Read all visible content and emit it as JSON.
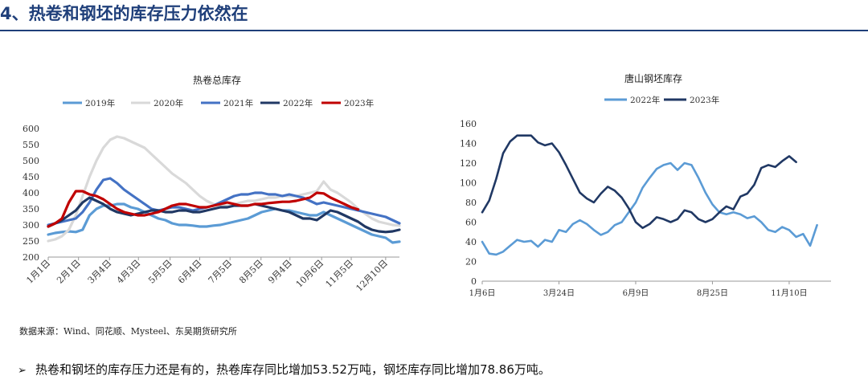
{
  "header": {
    "title": "4、热卷和钢坯的库存压力依然在"
  },
  "source_note": "数据来源：Wind、同花顺、Mysteel、东吴期货研究所",
  "bullet": {
    "arrow": "➢",
    "text": "热卷和钢坯的库存压力还是有的，热卷库存同比增加53.52万吨，钢坯库存同比增加78.86万吨。"
  },
  "chart_data": [
    {
      "type": "line",
      "title": "热卷总库存",
      "xlabel": "",
      "ylabel": "",
      "ylim": [
        200,
        600
      ],
      "yticks": [
        "600",
        "550",
        "500",
        "450",
        "400",
        "350",
        "300",
        "250",
        "200"
      ],
      "x_tick_labels": [
        "1月1日",
        "2月1日",
        "3月4日",
        "4月3日",
        "5月5日",
        "6月4日",
        "7月5日",
        "8月5日",
        "9月4日",
        "10月6日",
        "11月5日",
        "12月10日"
      ],
      "x_tick_weeks": [
        0,
        4.4,
        8.9,
        13.1,
        17.7,
        22,
        26.4,
        30.9,
        35.1,
        39.7,
        44,
        49
      ],
      "x_range_weeks": [
        0,
        51
      ],
      "grid": false,
      "legend": "top",
      "series": [
        {
          "name": "2019年",
          "color": "#5b9bd5",
          "values": [
            270,
            275,
            278,
            280,
            278,
            285,
            330,
            350,
            360,
            360,
            365,
            365,
            355,
            350,
            340,
            330,
            320,
            315,
            305,
            300,
            300,
            298,
            295,
            295,
            298,
            300,
            305,
            310,
            315,
            320,
            330,
            340,
            345,
            350,
            345,
            345,
            340,
            335,
            330,
            330,
            340,
            330,
            320,
            310,
            300,
            290,
            280,
            270,
            265,
            260,
            245,
            248
          ]
        },
        {
          "name": "2020年",
          "color": "#d9d9d9",
          "values": [
            250,
            255,
            265,
            285,
            330,
            390,
            450,
            500,
            540,
            565,
            575,
            570,
            560,
            550,
            540,
            520,
            500,
            480,
            460,
            445,
            430,
            410,
            390,
            375,
            365,
            360,
            360,
            365,
            370,
            375,
            375,
            380,
            385,
            385,
            390,
            390,
            390,
            395,
            400,
            405,
            435,
            410,
            400,
            385,
            370,
            350,
            335,
            320,
            310,
            305,
            300,
            298
          ]
        },
        {
          "name": "2021年",
          "color": "#4472c4",
          "values": [
            300,
            305,
            310,
            315,
            320,
            340,
            370,
            410,
            440,
            445,
            430,
            410,
            395,
            380,
            365,
            350,
            345,
            350,
            355,
            355,
            350,
            345,
            350,
            355,
            360,
            370,
            380,
            390,
            395,
            395,
            400,
            400,
            395,
            395,
            390,
            395,
            390,
            385,
            375,
            365,
            370,
            365,
            360,
            355,
            350,
            345,
            340,
            335,
            330,
            325,
            315,
            305
          ]
        },
        {
          "name": "2022年",
          "color": "#203864",
          "values": [
            295,
            305,
            315,
            330,
            345,
            370,
            385,
            375,
            365,
            350,
            340,
            335,
            330,
            335,
            340,
            345,
            345,
            340,
            340,
            345,
            345,
            340,
            340,
            345,
            350,
            355,
            355,
            360,
            360,
            360,
            365,
            360,
            355,
            350,
            345,
            340,
            330,
            320,
            320,
            315,
            330,
            345,
            340,
            330,
            320,
            310,
            295,
            285,
            280,
            278,
            280,
            285
          ]
        },
        {
          "name": "2023年",
          "color": "#c00000",
          "values": [
            295,
            305,
            320,
            370,
            405,
            405,
            395,
            390,
            380,
            365,
            350,
            340,
            335,
            330,
            330,
            335,
            340,
            350,
            360,
            365,
            365,
            360,
            355,
            355,
            360,
            365,
            370,
            365,
            360,
            360,
            365,
            365,
            368,
            370,
            372,
            372,
            375,
            380,
            385,
            400,
            398,
            385,
            375,
            365,
            355,
            348
          ]
        }
      ]
    },
    {
      "type": "line",
      "title": "唐山钢坯库存",
      "xlabel": "",
      "ylabel": "",
      "ylim": [
        0,
        160
      ],
      "yticks": [
        "0",
        "20",
        "40",
        "60",
        "80",
        "100",
        "120",
        "140",
        "160"
      ],
      "x_tick_labels": [
        "1月6日",
        "3月24日",
        "6月9日",
        "8月25日",
        "11月10日"
      ],
      "x_tick_weeks": [
        0,
        11,
        22,
        33,
        44
      ],
      "x_range_weeks": [
        0,
        50
      ],
      "grid": false,
      "legend": "top",
      "series": [
        {
          "name": "2022年",
          "color": "#5b9bd5",
          "values": [
            40,
            28,
            27,
            30,
            36,
            42,
            40,
            41,
            35,
            42,
            40,
            52,
            50,
            58,
            62,
            58,
            52,
            47,
            50,
            57,
            60,
            70,
            80,
            95,
            105,
            114,
            118,
            120,
            113,
            120,
            118,
            105,
            90,
            78,
            70,
            68,
            70,
            68,
            64,
            66,
            60,
            52,
            50,
            55,
            52,
            45,
            48,
            36,
            57
          ]
        },
        {
          "name": "2023年",
          "color": "#203864",
          "values": [
            70,
            82,
            104,
            130,
            142,
            148,
            148,
            148,
            141,
            138,
            140,
            131,
            118,
            104,
            90,
            84,
            80,
            89,
            96,
            92,
            85,
            74,
            60,
            54,
            58,
            65,
            63,
            60,
            63,
            72,
            70,
            63,
            60,
            63,
            70,
            76,
            73,
            86,
            89,
            98,
            115,
            118,
            116,
            122,
            127,
            121
          ]
        }
      ]
    }
  ]
}
